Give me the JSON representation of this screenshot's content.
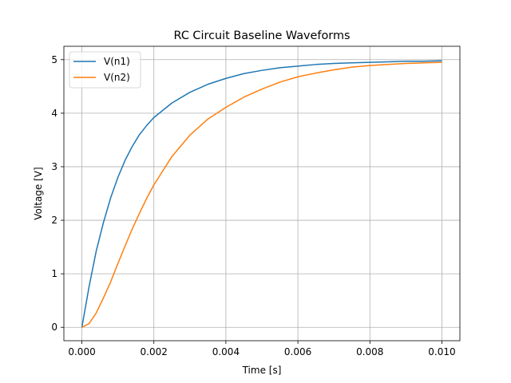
{
  "chart_data": {
    "type": "line",
    "title": "RC Circuit Baseline Waveforms",
    "xlabel": "Time [s]",
    "ylabel": "Voltage [V]",
    "xlim": [
      -0.0005,
      0.0105
    ],
    "ylim": [
      -0.25,
      5.25
    ],
    "x_ticks": [
      0.0,
      0.002,
      0.004,
      0.006,
      0.008,
      0.01
    ],
    "x_tick_labels": [
      "0.000",
      "0.002",
      "0.004",
      "0.006",
      "0.008",
      "0.010"
    ],
    "y_ticks": [
      0,
      1,
      2,
      3,
      4,
      5
    ],
    "y_tick_labels": [
      "0",
      "1",
      "2",
      "3",
      "4",
      "5"
    ],
    "grid": true,
    "legend_position": "top-left",
    "x": [
      0.0,
      0.0002,
      0.0004,
      0.0006,
      0.0008,
      0.001,
      0.0012,
      0.0014,
      0.0016,
      0.0018,
      0.002,
      0.0025,
      0.003,
      0.0035,
      0.004,
      0.0045,
      0.005,
      0.0055,
      0.006,
      0.0065,
      0.007,
      0.0075,
      0.008,
      0.0085,
      0.009,
      0.0095,
      0.01
    ],
    "series": [
      {
        "name": "V(n1)",
        "color": "#1f77b4",
        "values": [
          0.0,
          0.76,
          1.43,
          1.96,
          2.42,
          2.8,
          3.12,
          3.38,
          3.6,
          3.77,
          3.92,
          4.19,
          4.39,
          4.54,
          4.65,
          4.74,
          4.8,
          4.85,
          4.88,
          4.91,
          4.93,
          4.94,
          4.95,
          4.96,
          4.97,
          4.97,
          4.98
        ]
      },
      {
        "name": "V(n2)",
        "color": "#ff7f0e",
        "values": [
          0.0,
          0.07,
          0.27,
          0.55,
          0.85,
          1.19,
          1.52,
          1.84,
          2.13,
          2.41,
          2.66,
          3.19,
          3.59,
          3.89,
          4.11,
          4.3,
          4.45,
          4.58,
          4.68,
          4.75,
          4.81,
          4.86,
          4.89,
          4.91,
          4.93,
          4.94,
          4.95
        ]
      }
    ]
  }
}
